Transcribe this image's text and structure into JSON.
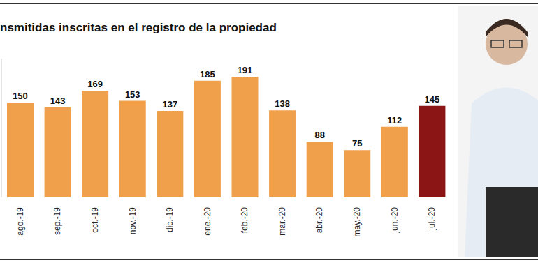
{
  "chart_data": {
    "type": "bar",
    "title": "nsmitidas inscritas en el registro de la propiedad",
    "categories": [
      "ago.-19",
      "sep.-19",
      "oct.-19",
      "nov.-19",
      "dic.-19",
      "ene.-20",
      "feb.-20",
      "mar.-20",
      "abr.-20",
      "may.-20",
      "jun.-20",
      "jul.-20"
    ],
    "values": [
      150,
      143,
      169,
      153,
      137,
      185,
      191,
      138,
      88,
      75,
      112,
      145
    ],
    "colors": [
      "#f0a04b",
      "#f0a04b",
      "#f0a04b",
      "#f0a04b",
      "#f0a04b",
      "#f0a04b",
      "#f0a04b",
      "#f0a04b",
      "#f0a04b",
      "#f0a04b",
      "#f0a04b",
      "#8b1414"
    ],
    "ylim": [
      0,
      220
    ],
    "yticks": [],
    "data_labels": true,
    "tick_labels": "x"
  }
}
